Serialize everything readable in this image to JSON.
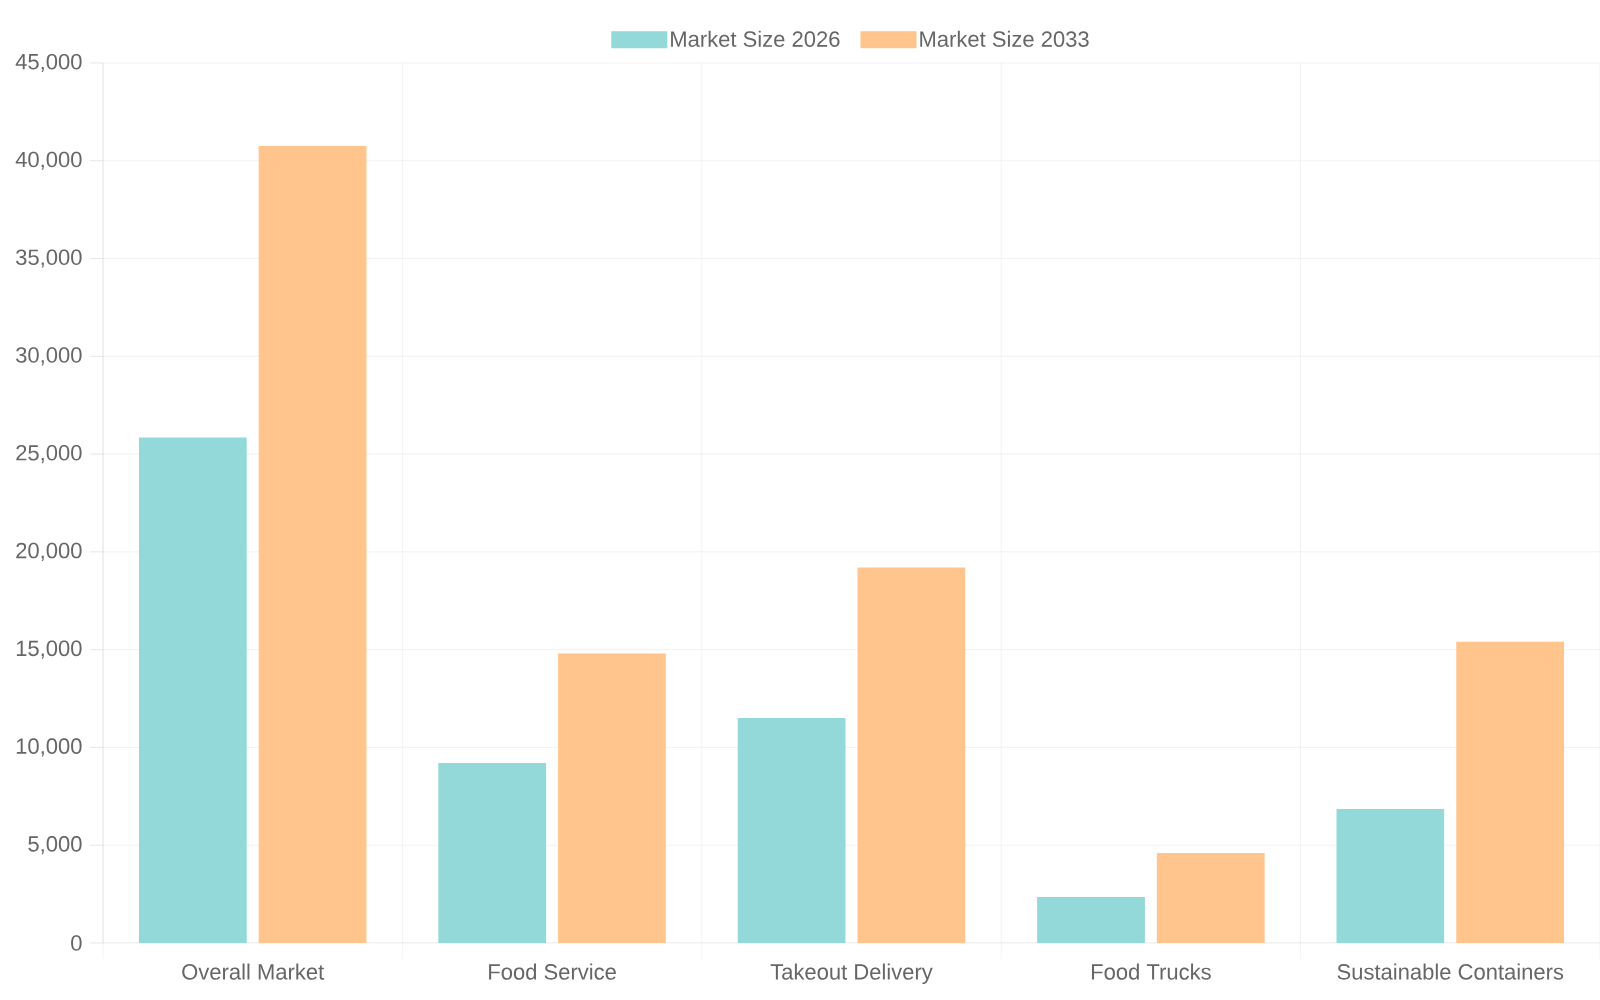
{
  "chart_data": {
    "type": "bar",
    "categories": [
      "Overall Market",
      "Food Service",
      "Takeout Delivery",
      "Food Trucks",
      "Sustainable Containers"
    ],
    "series": [
      {
        "name": "Market Size 2026",
        "color": "#93d9d9",
        "values": [
          25850,
          9200,
          11500,
          2350,
          6850
        ]
      },
      {
        "name": "Market Size 2033",
        "color": "#ffc58c",
        "values": [
          40750,
          14800,
          19200,
          4600,
          15400
        ]
      }
    ],
    "ylim": [
      0,
      45000
    ],
    "yticks": [
      0,
      {
        "value": 5000,
        "label": "5,000"
      },
      {
        "value": 10000,
        "label": "10,000"
      },
      {
        "value": 15000,
        "label": "15,000"
      },
      {
        "value": 20000,
        "label": "20,000"
      },
      {
        "value": 25000,
        "label": "25,000"
      },
      {
        "value": 30000,
        "label": "30,000"
      },
      {
        "value": 35000,
        "label": "35,000"
      },
      {
        "value": 40000,
        "label": "40,000"
      },
      {
        "value": 45000,
        "label": "45,000"
      }
    ],
    "grid": true,
    "legend": "top"
  }
}
